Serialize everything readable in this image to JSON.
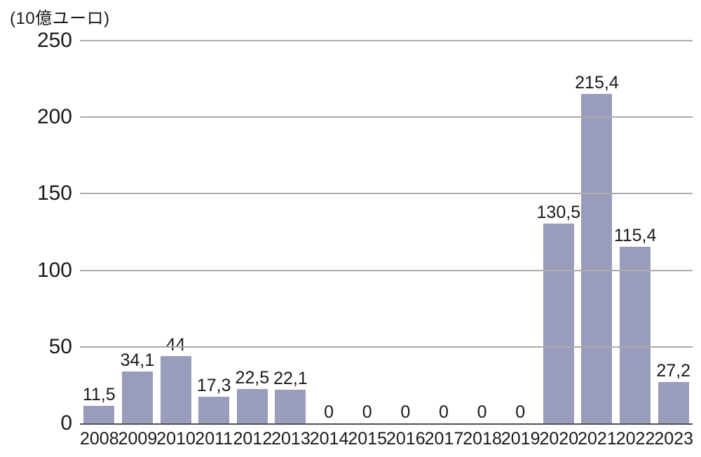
{
  "chart_data": {
    "type": "bar",
    "title": "(10億ユーロ)",
    "categories": [
      "2008",
      "2009",
      "2010",
      "2011",
      "2012",
      "2013",
      "2014",
      "2015",
      "2016",
      "2017",
      "2018",
      "2019",
      "2020",
      "2021",
      "2022",
      "2023"
    ],
    "values": [
      11.5,
      34.1,
      44,
      17.3,
      22.5,
      22.1,
      0,
      0,
      0,
      0,
      0,
      0,
      130.5,
      215.4,
      115.4,
      27.2
    ],
    "value_labels": [
      "11,5",
      "34,1",
      "44",
      "17,3",
      "22,5",
      "22,1",
      "0",
      "0",
      "0",
      "0",
      "0",
      "0",
      "130,5",
      "215,4",
      "115,4",
      "27,2"
    ],
    "xlabel": "",
    "ylabel": "(10億ユーロ)",
    "ylim": [
      0,
      250
    ],
    "yticks": [
      0,
      50,
      100,
      150,
      200,
      250
    ],
    "grid": "horizontal",
    "legend": "none",
    "colors": {
      "bar": "#999cba",
      "gridline": "#ababab",
      "axis_line": "#4f4f4f",
      "text": "#1a1a1a",
      "background": "#ffffff"
    }
  }
}
